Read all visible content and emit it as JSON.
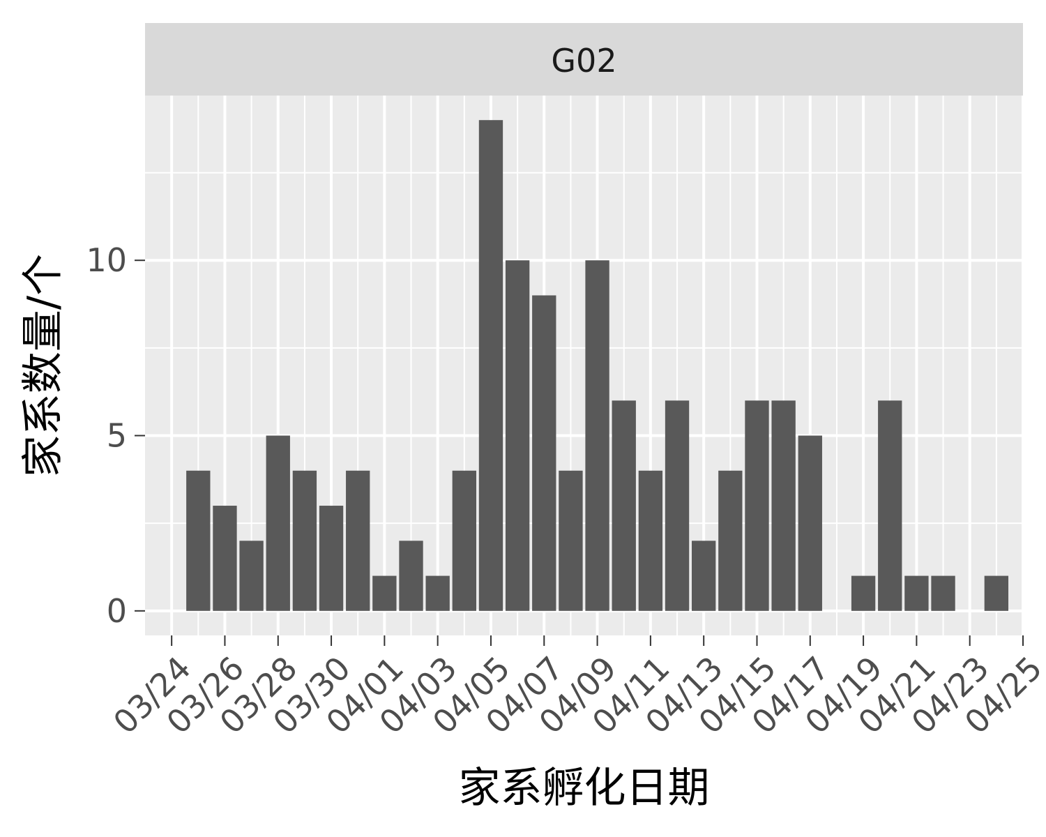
{
  "chart_data": {
    "type": "bar",
    "facet": "G02",
    "xlabel": "家系孵化日期",
    "ylabel": "家系数量/个",
    "x_tick_labels": [
      "03/24",
      "03/26",
      "03/28",
      "03/30",
      "04/01",
      "04/03",
      "04/05",
      "04/07",
      "04/09",
      "04/11",
      "04/13",
      "04/15",
      "04/17",
      "04/19",
      "04/21",
      "04/23",
      "04/25"
    ],
    "y_ticks": [
      0,
      5,
      10
    ],
    "y_tick_labels": [
      "0",
      "5",
      "10"
    ],
    "ylim": [
      -0.7,
      14.7
    ],
    "xlim": [
      "03/23",
      "04/25"
    ],
    "categories": [
      "03/25",
      "03/26",
      "03/27",
      "03/28",
      "03/29",
      "03/30",
      "03/31",
      "04/01",
      "04/02",
      "04/03",
      "04/04",
      "04/05",
      "04/06",
      "04/07",
      "04/08",
      "04/09",
      "04/10",
      "04/11",
      "04/12",
      "04/13",
      "04/14",
      "04/15",
      "04/16",
      "04/17",
      "04/18",
      "04/19",
      "04/20",
      "04/21",
      "04/22",
      "04/23",
      "04/24"
    ],
    "values": [
      4,
      3,
      2,
      5,
      4,
      3,
      4,
      1,
      2,
      1,
      4,
      14,
      10,
      9,
      4,
      10,
      6,
      4,
      6,
      2,
      4,
      6,
      6,
      5,
      0,
      1,
      6,
      1,
      1,
      0,
      1
    ],
    "bar_color": "#595959",
    "panel_color": "#ebebeb",
    "strip_color": "#d9d9d9",
    "grid": true,
    "legend": "none"
  }
}
